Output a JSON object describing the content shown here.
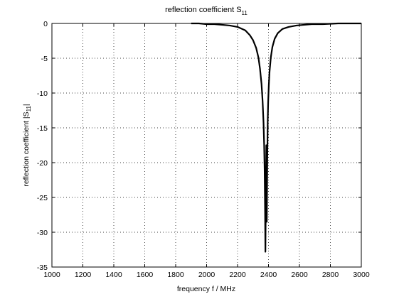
{
  "chart_data": {
    "type": "line",
    "title_main": "reflection coefficient S",
    "title_sub": "11",
    "xlabel": "frequency f / MHz",
    "ylabel_main": "reflection coefficient |S",
    "ylabel_sub": "11",
    "ylabel_end": "|",
    "xlim": [
      1000,
      3000
    ],
    "ylim": [
      -35,
      0
    ],
    "xticks": [
      1000,
      1200,
      1400,
      1600,
      1800,
      2000,
      2200,
      2400,
      2600,
      2800,
      3000
    ],
    "yticks": [
      0,
      -5,
      -10,
      -15,
      -20,
      -25,
      -30,
      -35
    ],
    "grid": true,
    "grid_style": "dotted",
    "line_color": "#000000",
    "series": [
      {
        "x": [
          1900,
          1950,
          2000,
          2050,
          2100,
          2150,
          2200,
          2250,
          2280,
          2300,
          2320,
          2335,
          2345,
          2355,
          2362,
          2368,
          2372,
          2375,
          2378,
          2380,
          2383,
          2386,
          2389,
          2392,
          2395,
          2398,
          2402,
          2407,
          2415,
          2425,
          2440,
          2460,
          2490,
          2530,
          2580,
          2630,
          2680,
          2750,
          2850,
          3000
        ],
        "y": [
          0,
          0,
          -0.1,
          -0.1,
          -0.2,
          -0.3,
          -0.5,
          -1.0,
          -1.7,
          -2.4,
          -3.5,
          -4.9,
          -6.5,
          -8.7,
          -11.2,
          -14.3,
          -17.5,
          -21.0,
          -27.0,
          -32.8,
          -25.0,
          -17.5,
          -28.5,
          -20.0,
          -14.0,
          -11.3,
          -8.9,
          -6.9,
          -4.9,
          -3.4,
          -2.2,
          -1.4,
          -0.8,
          -0.5,
          -0.3,
          -0.2,
          -0.1,
          -0.1,
          0,
          0
        ]
      }
    ]
  }
}
